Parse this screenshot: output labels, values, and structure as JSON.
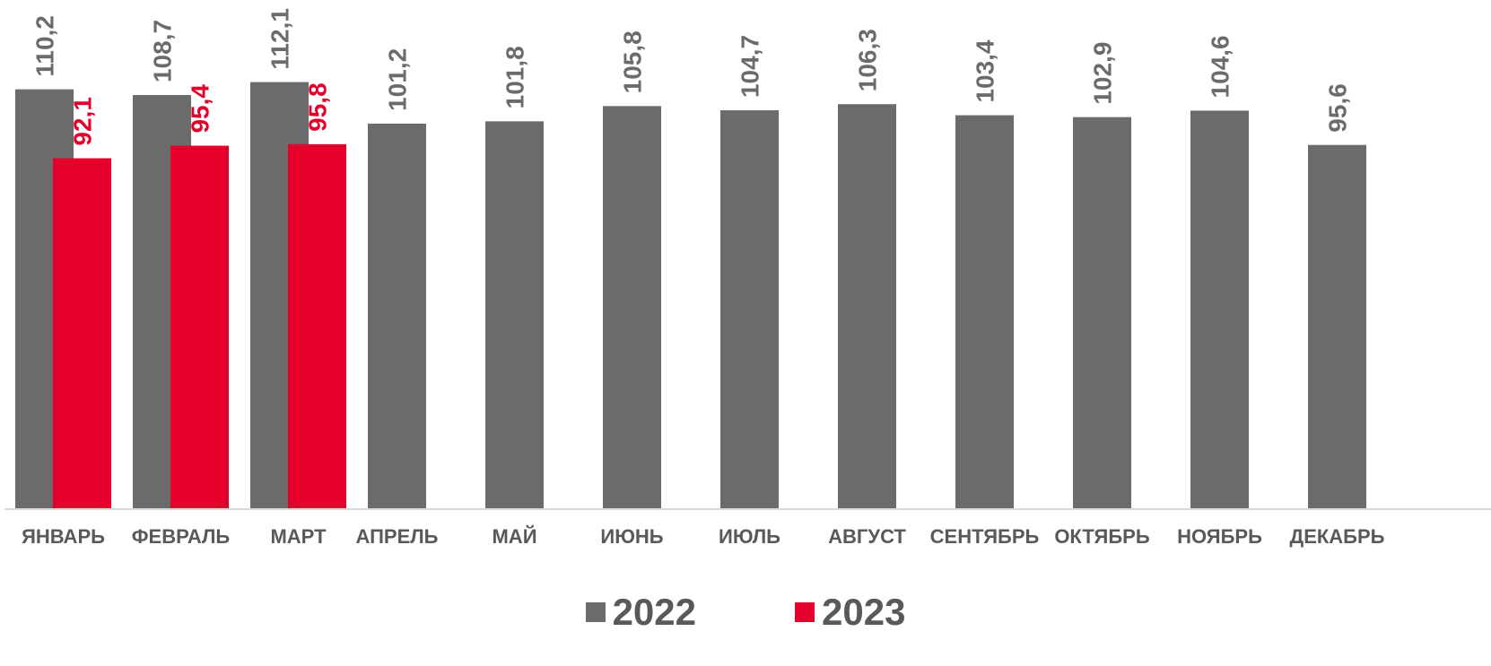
{
  "chart_data": {
    "type": "bar",
    "categories": [
      "ЯНВАРЬ",
      "ФЕВРАЛЬ",
      "МАРТ",
      "АПРЕЛЬ",
      "МАЙ",
      "ИЮНЬ",
      "ИЮЛЬ",
      "АВГУСТ",
      "СЕНТЯБРЬ",
      "ОКТЯБРЬ",
      "НОЯБРЬ",
      "ДЕКАБРЬ"
    ],
    "series": [
      {
        "name": "2022",
        "color": "#6b6b6b",
        "values": [
          110.2,
          108.7,
          112.1,
          101.2,
          101.8,
          105.8,
          104.7,
          106.3,
          103.4,
          102.9,
          104.6,
          95.6
        ],
        "labels": [
          "110,2",
          "108,7",
          "112,1",
          "101,2",
          "101,8",
          "105,8",
          "104,7",
          "106,3",
          "103,4",
          "102,9",
          "104,6",
          "95,6"
        ]
      },
      {
        "name": "2023",
        "color": "#e4002b",
        "values": [
          92.1,
          95.4,
          95.8,
          null,
          null,
          null,
          null,
          null,
          null,
          null,
          null,
          null
        ],
        "labels": [
          "92,1",
          "95,4",
          "95,8",
          "",
          "",
          "",
          "",
          "",
          "",
          "",
          "",
          ""
        ]
      }
    ],
    "ylim": [
      0,
      140
    ],
    "grid": false,
    "legend_position": "bottom-center",
    "axis_color": "#d9d9d9",
    "category_label_color": "#595959"
  },
  "legend": {
    "items": [
      {
        "label": "2022",
        "color": "#6b6b6b"
      },
      {
        "label": "2023",
        "color": "#e4002b"
      }
    ]
  }
}
